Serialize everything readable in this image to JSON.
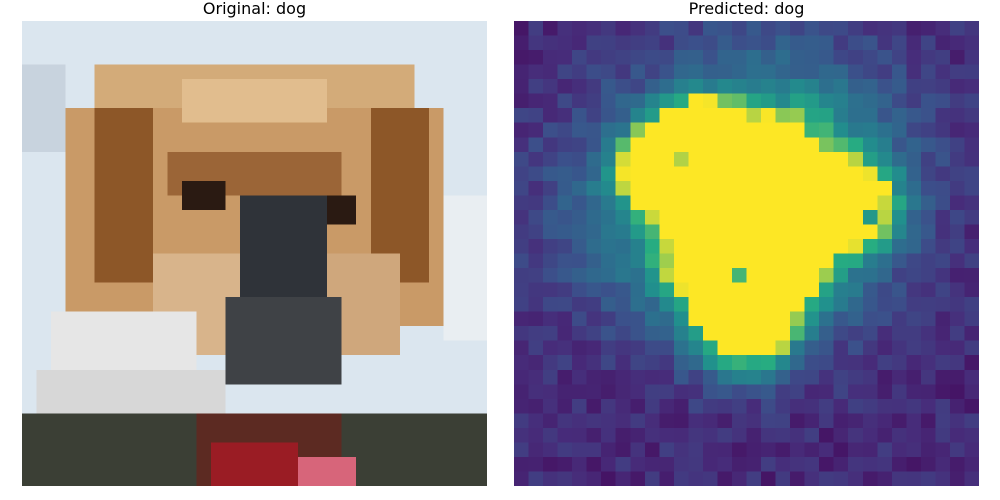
{
  "figure": {
    "left_title": "Original: dog",
    "right_title": "Predicted: dog"
  },
  "image": {
    "subject": "close-up of a dog face (pixelated)",
    "palette": {
      "sky": "#dbe6ef",
      "fur_light": "#d7b17f",
      "fur_dark": "#7a4a22",
      "muzzle": "#2f3339",
      "white_fur": "#e6e6e6",
      "collar_red": "#9a1c24",
      "tongue_pink": "#d7657a",
      "shadow": "#3b3f35"
    }
  },
  "heatmap": {
    "colormap": "viridis",
    "grid": [
      32,
      32
    ],
    "bright_spots": [
      "yellow",
      "yellow",
      "yellow-green",
      "light-green",
      "teal"
    ]
  }
}
